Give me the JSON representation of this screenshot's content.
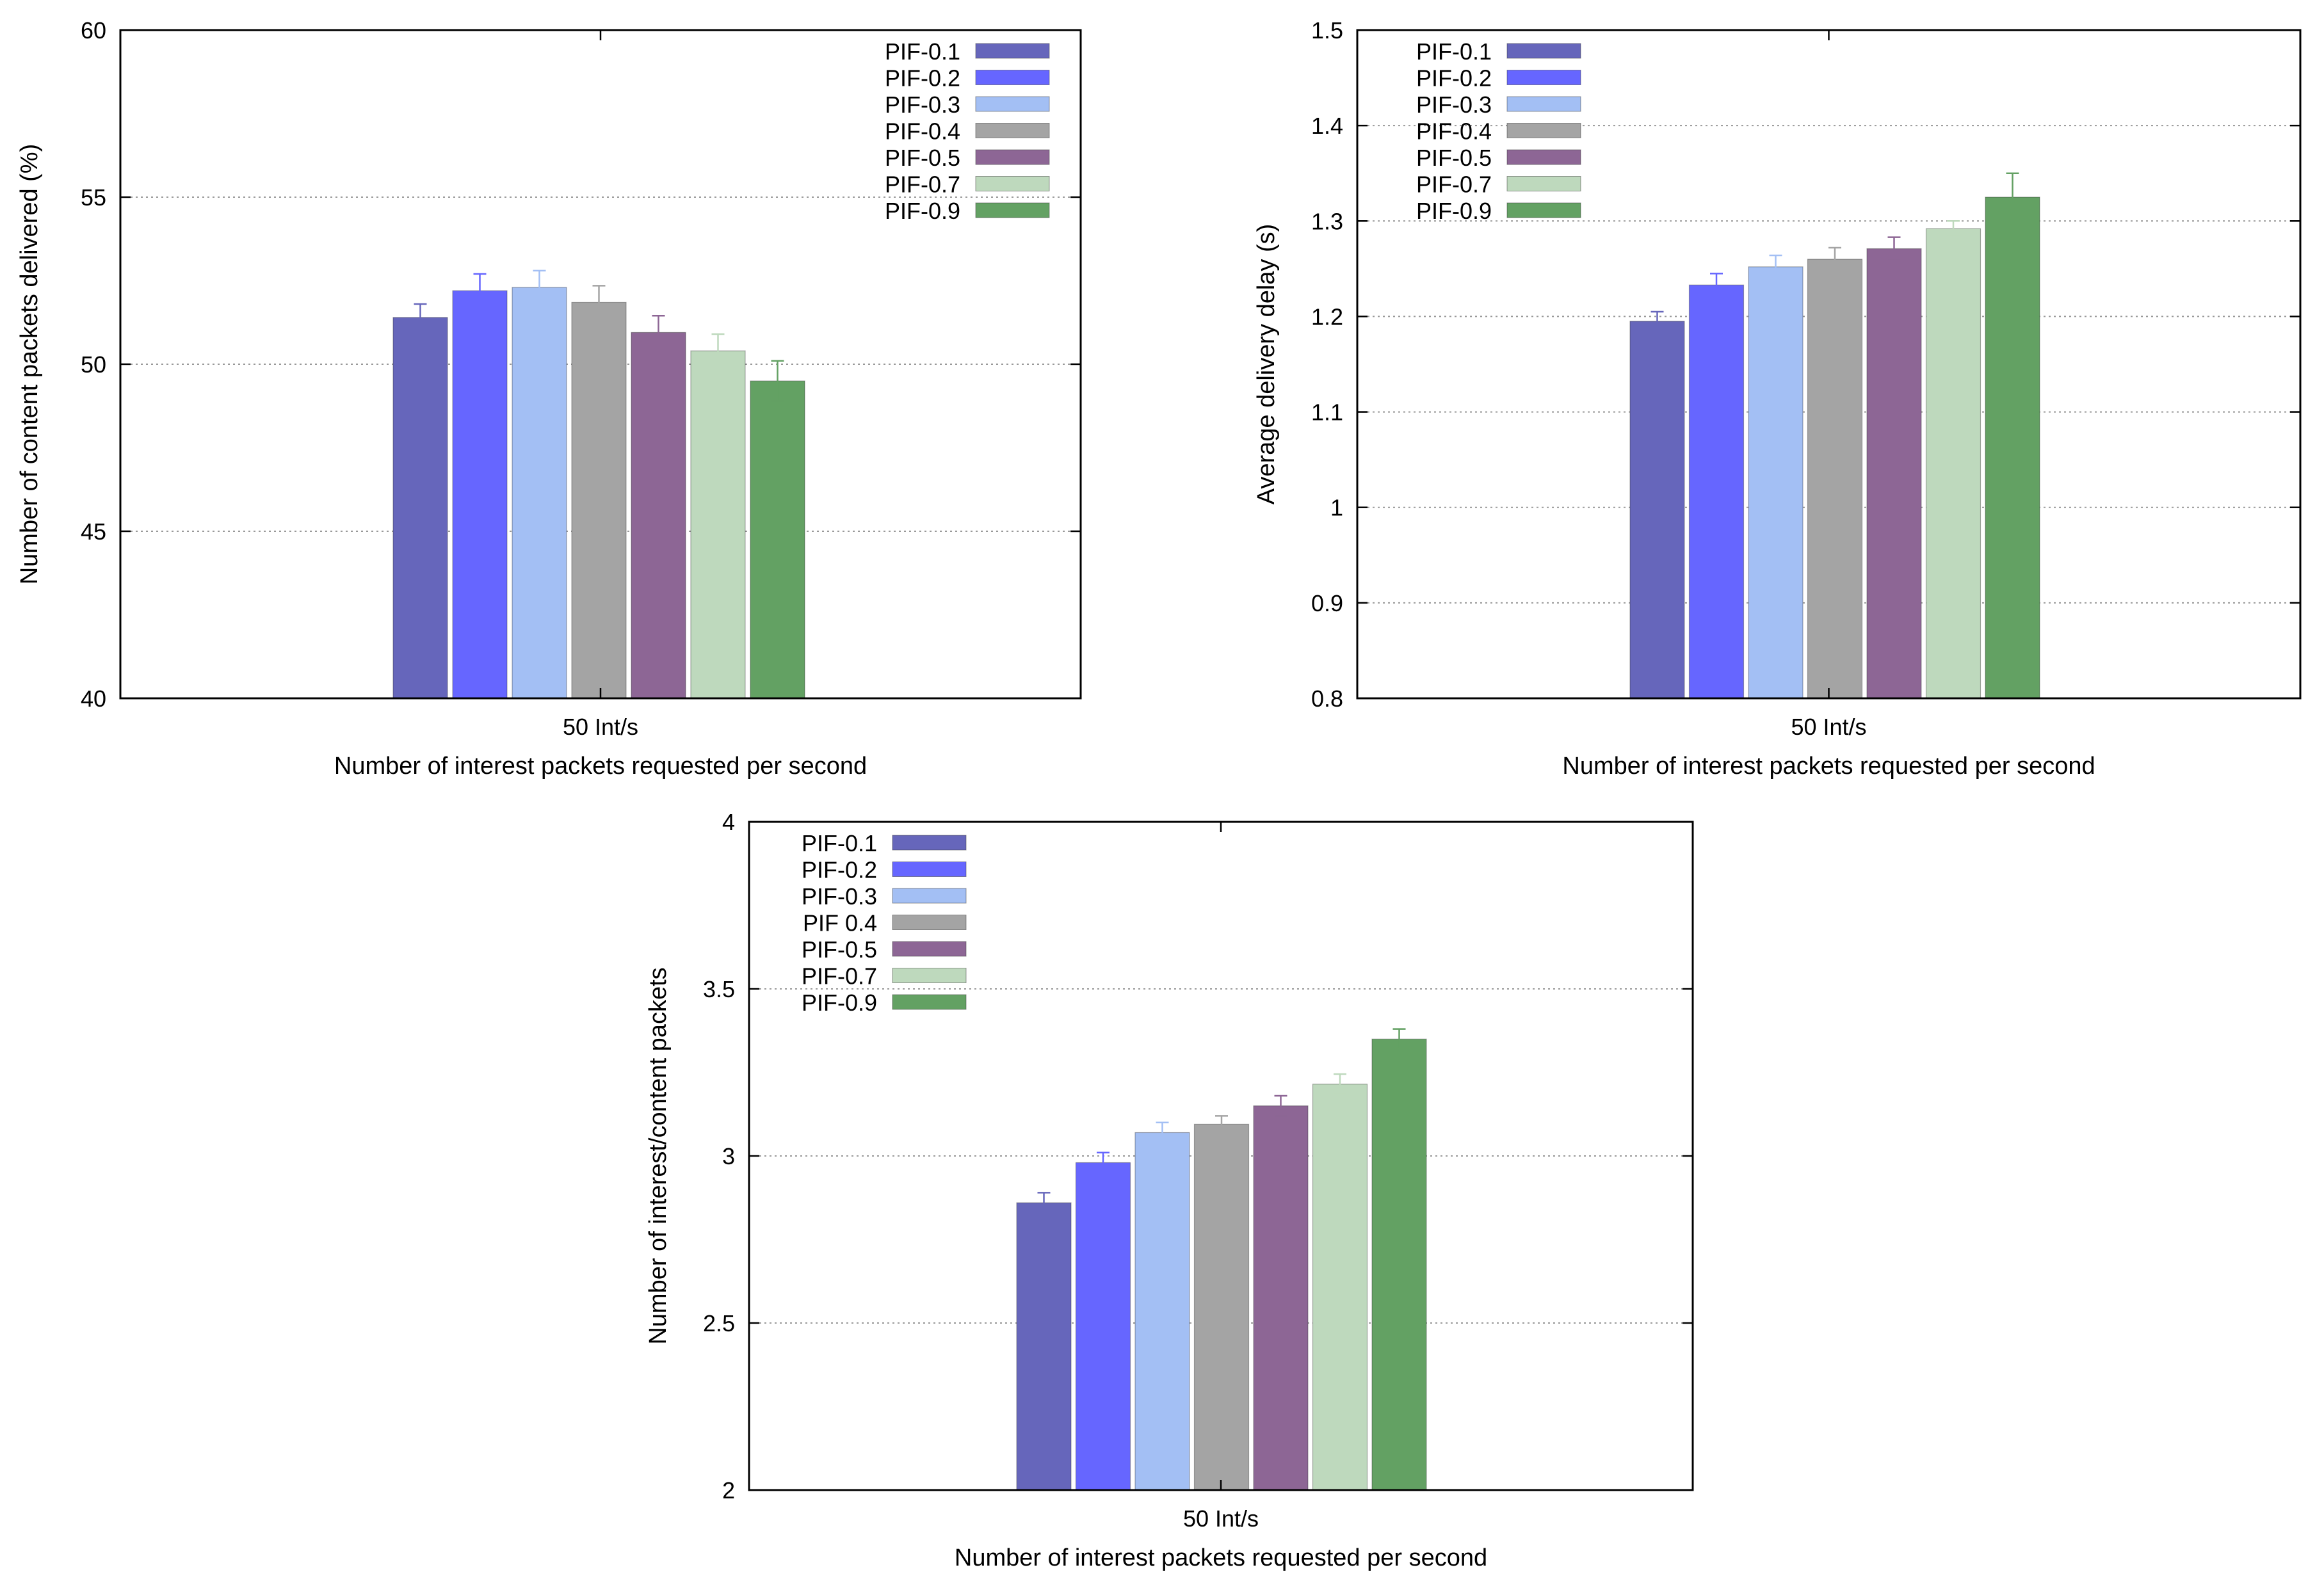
{
  "chart_data": [
    {
      "type": "bar",
      "categories": [
        "50 Int/s"
      ],
      "xlabel": "Number of interest packets requested per second",
      "ylabel": "Number of content packets delivered (%)",
      "ylim": [
        40,
        60
      ],
      "yticks": [
        40,
        45,
        50,
        55,
        60
      ],
      "ytick_labels": [
        "40",
        "45",
        "50",
        "55",
        "60"
      ],
      "grid": true,
      "legend_position": "top-right",
      "series": [
        {
          "name": "PIF-0.1",
          "color": "#6666bb",
          "values": [
            51.4
          ],
          "errors": [
            0.4
          ]
        },
        {
          "name": "PIF-0.2",
          "color": "#6666ff",
          "values": [
            52.2
          ],
          "errors": [
            0.5
          ]
        },
        {
          "name": "PIF-0.3",
          "color": "#a3bff4",
          "values": [
            52.3
          ],
          "errors": [
            0.5
          ]
        },
        {
          "name": "PIF-0.4",
          "color": "#a4a4a4",
          "values": [
            51.85
          ],
          "errors": [
            0.5
          ]
        },
        {
          "name": "PIF-0.5",
          "color": "#8d6695",
          "values": [
            50.95
          ],
          "errors": [
            0.5
          ]
        },
        {
          "name": "PIF-0.7",
          "color": "#bed9bd",
          "values": [
            50.4
          ],
          "errors": [
            0.5
          ]
        },
        {
          "name": "PIF-0.9",
          "color": "#63a163",
          "values": [
            49.5
          ],
          "errors": [
            0.6
          ]
        }
      ]
    },
    {
      "type": "bar",
      "categories": [
        "50 Int/s"
      ],
      "xlabel": "Number of interest packets requested per second",
      "ylabel": "Average delivery delay (s)",
      "ylim": [
        0.8,
        1.5
      ],
      "yticks": [
        0.8,
        0.9,
        1.0,
        1.1,
        1.2,
        1.3,
        1.4,
        1.5
      ],
      "ytick_labels": [
        "0.8",
        "0.9",
        "1",
        "1.1",
        "1.2",
        "1.3",
        "1.4",
        "1.5"
      ],
      "grid": true,
      "legend_position": "top-left",
      "series": [
        {
          "name": "PIF-0.1",
          "color": "#6666bb",
          "values": [
            1.195
          ],
          "errors": [
            0.01
          ]
        },
        {
          "name": "PIF-0.2",
          "color": "#6666ff",
          "values": [
            1.233
          ],
          "errors": [
            0.012
          ]
        },
        {
          "name": "PIF-0.3",
          "color": "#a3bff4",
          "values": [
            1.252
          ],
          "errors": [
            0.012
          ]
        },
        {
          "name": "PIF-0.4",
          "color": "#a4a4a4",
          "values": [
            1.26
          ],
          "errors": [
            0.012
          ]
        },
        {
          "name": "PIF-0.5",
          "color": "#8d6695",
          "values": [
            1.271
          ],
          "errors": [
            0.012
          ]
        },
        {
          "name": "PIF-0.7",
          "color": "#bed9bd",
          "values": [
            1.292
          ],
          "errors": [
            0.008
          ]
        },
        {
          "name": "PIF-0.9",
          "color": "#63a163",
          "values": [
            1.325
          ],
          "errors": [
            0.025
          ]
        }
      ]
    },
    {
      "type": "bar",
      "categories": [
        "50 Int/s"
      ],
      "xlabel": "Number of interest packets requested per second",
      "ylabel": "Number of  interest/content packets",
      "ylim": [
        2,
        4
      ],
      "yticks": [
        2,
        2.5,
        3,
        3.5,
        4
      ],
      "ytick_labels": [
        "2",
        "2.5",
        "3",
        "3.5",
        "4"
      ],
      "grid": true,
      "legend_position": "top-left",
      "series": [
        {
          "name": "PIF-0.1",
          "color": "#6666bb",
          "values": [
            2.86
          ],
          "errors": [
            0.03
          ]
        },
        {
          "name": "PIF-0.2",
          "color": "#6666ff",
          "values": [
            2.98
          ],
          "errors": [
            0.03
          ]
        },
        {
          "name": "PIF-0.3",
          "color": "#a3bff4",
          "values": [
            3.07
          ],
          "errors": [
            0.03
          ]
        },
        {
          "name": "PIF 0.4",
          "color": "#a4a4a4",
          "values": [
            3.095
          ],
          "errors": [
            0.025
          ]
        },
        {
          "name": "PIF-0.5",
          "color": "#8d6695",
          "values": [
            3.15
          ],
          "errors": [
            0.03
          ]
        },
        {
          "name": "PIF-0.7",
          "color": "#bed9bd",
          "values": [
            3.215
          ],
          "errors": [
            0.03
          ]
        },
        {
          "name": "PIF-0.9",
          "color": "#63a163",
          "values": [
            3.35
          ],
          "errors": [
            0.03
          ]
        }
      ]
    }
  ]
}
